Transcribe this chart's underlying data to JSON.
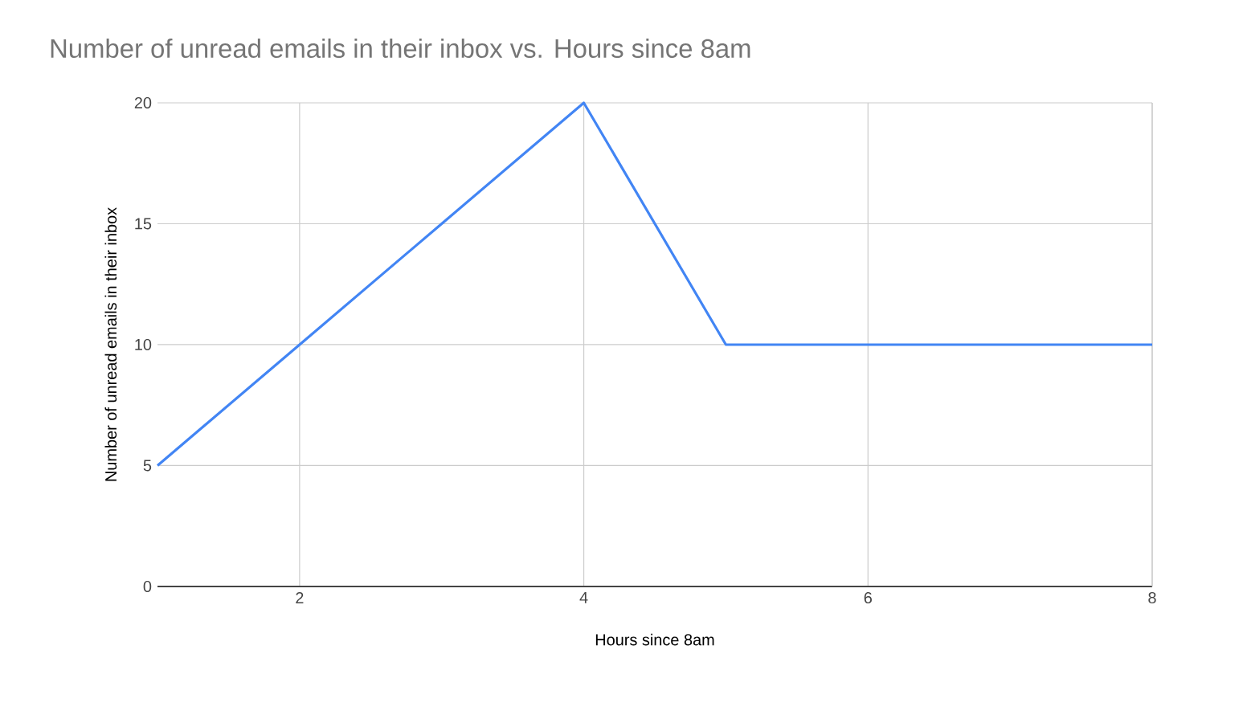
{
  "chart_data": {
    "type": "line",
    "title": "Number of unread emails in their inbox vs. Hours since 8am",
    "xlabel": "Hours since 8am",
    "ylabel": "Number of unread emails in their inbox",
    "x": [
      1,
      2,
      3,
      4,
      5,
      6,
      7,
      8
    ],
    "series": [
      {
        "color": "#4285f4",
        "values": [
          5,
          10,
          15,
          20,
          10,
          10,
          10,
          10
        ]
      }
    ],
    "xlim": [
      1,
      8
    ],
    "xticks": [
      2,
      4,
      6,
      8
    ],
    "ylim": [
      0,
      20
    ],
    "yticks": [
      0,
      5,
      10,
      15,
      20
    ],
    "grid": true,
    "marker": "none",
    "line_style": "solid"
  }
}
